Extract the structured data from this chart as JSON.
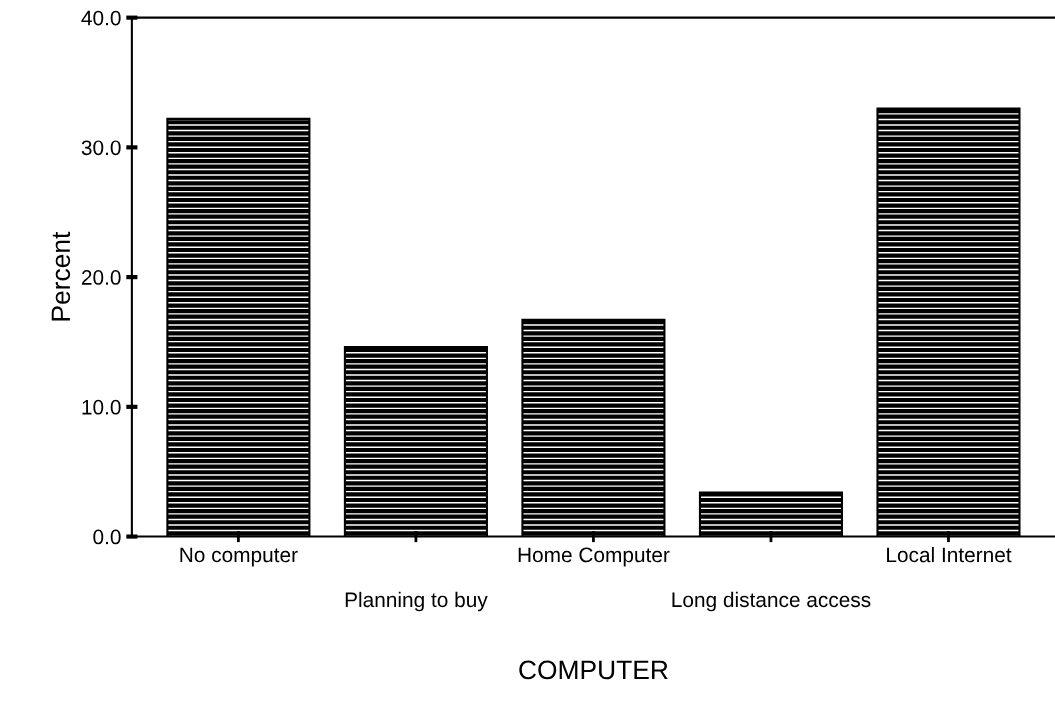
{
  "chart_data": {
    "type": "bar",
    "xlabel": "COMPUTER",
    "ylabel": "Percent",
    "categories": [
      "No computer",
      "Planning to buy",
      "Home Computer",
      "Long distance access",
      "Local Internet"
    ],
    "values": [
      32.2,
      14.6,
      16.7,
      3.4,
      33.0
    ],
    "color": "#000000",
    "ylim": [
      0,
      40
    ],
    "yticks": [
      {
        "value": 0,
        "label": "0.0"
      },
      {
        "value": 10,
        "label": "10.0"
      },
      {
        "value": 20,
        "label": "20.0"
      },
      {
        "value": 30,
        "label": "30.0"
      },
      {
        "value": 40,
        "label": "40.0"
      }
    ],
    "grid": false
  }
}
